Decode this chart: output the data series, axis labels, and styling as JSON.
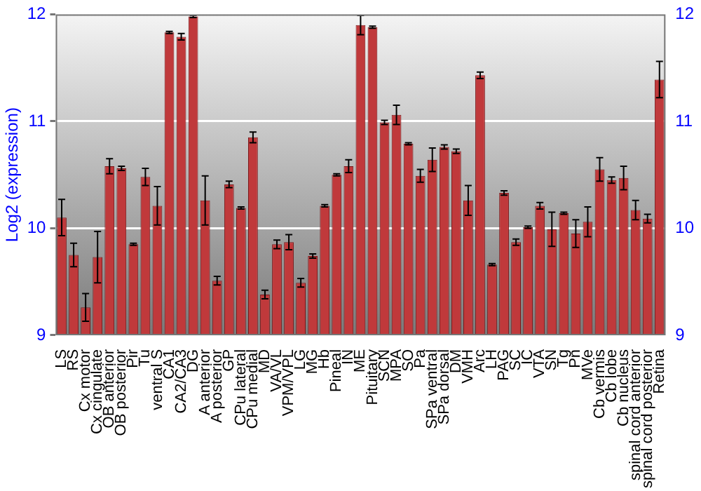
{
  "chart_data": {
    "type": "bar",
    "ylabel": "Log2 (expression)",
    "categories": [
      "LS",
      "RS",
      "Cx motor",
      "Cx cingulate",
      "OB anterior",
      "OB posterior",
      "Pir",
      "Tu",
      "ventral S",
      "CA1",
      "CA2/CA3",
      "DG",
      "A anterior",
      "A posterior",
      "GP",
      "CPu lateral",
      "CPu medial",
      "MD",
      "VA/VL",
      "VPM/VPL",
      "LG",
      "MG",
      "Hb",
      "Pineal",
      "IN",
      "ME",
      "Pituitary",
      "SCN",
      "MPA",
      "SO",
      "Pa",
      "SPa ventral",
      "SPa dorsal",
      "DM",
      "VMH",
      "Arc",
      "LH",
      "PAG",
      "SC",
      "IC",
      "VTA",
      "SN",
      "Tg",
      "Pn",
      "MVe",
      "Cb vermis",
      "Cb lobe",
      "Cb nucleus",
      "spinal cord anterior",
      "spinal cord posterior",
      "Retina"
    ],
    "values": [
      10.1,
      9.75,
      9.26,
      9.73,
      10.58,
      10.56,
      9.85,
      10.48,
      10.21,
      11.83,
      11.79,
      11.98,
      10.26,
      9.51,
      10.41,
      10.19,
      10.85,
      9.38,
      9.85,
      9.87,
      9.49,
      9.74,
      10.21,
      10.5,
      10.58,
      11.9,
      11.88,
      10.99,
      11.06,
      10.79,
      10.49,
      10.64,
      10.76,
      10.72,
      10.26,
      11.43,
      9.66,
      10.33,
      9.87,
      10.01,
      10.21,
      9.99,
      10.14,
      9.95,
      10.06,
      10.55,
      10.45,
      10.47,
      10.17,
      10.09,
      11.39
    ],
    "errors": [
      0.17,
      0.11,
      0.13,
      0.24,
      0.07,
      0.02,
      0.01,
      0.08,
      0.18,
      0.01,
      0.03,
      0.01,
      0.23,
      0.04,
      0.03,
      0.01,
      0.05,
      0.04,
      0.04,
      0.07,
      0.04,
      0.02,
      0.01,
      0.01,
      0.06,
      0.09,
      0.01,
      0.02,
      0.09,
      0.01,
      0.06,
      0.11,
      0.02,
      0.02,
      0.14,
      0.03,
      0.01,
      0.02,
      0.03,
      0.01,
      0.03,
      0.16,
      0.01,
      0.13,
      0.14,
      0.11,
      0.03,
      0.11,
      0.09,
      0.04,
      0.17
    ],
    "color": "#c0393b",
    "ylim": [
      9,
      12
    ],
    "yticks": [
      9,
      10,
      11,
      12
    ],
    "y2lim": [
      9,
      12
    ],
    "y2ticks": [
      9,
      10,
      11,
      12
    ],
    "grid": "y",
    "legend": false
  }
}
